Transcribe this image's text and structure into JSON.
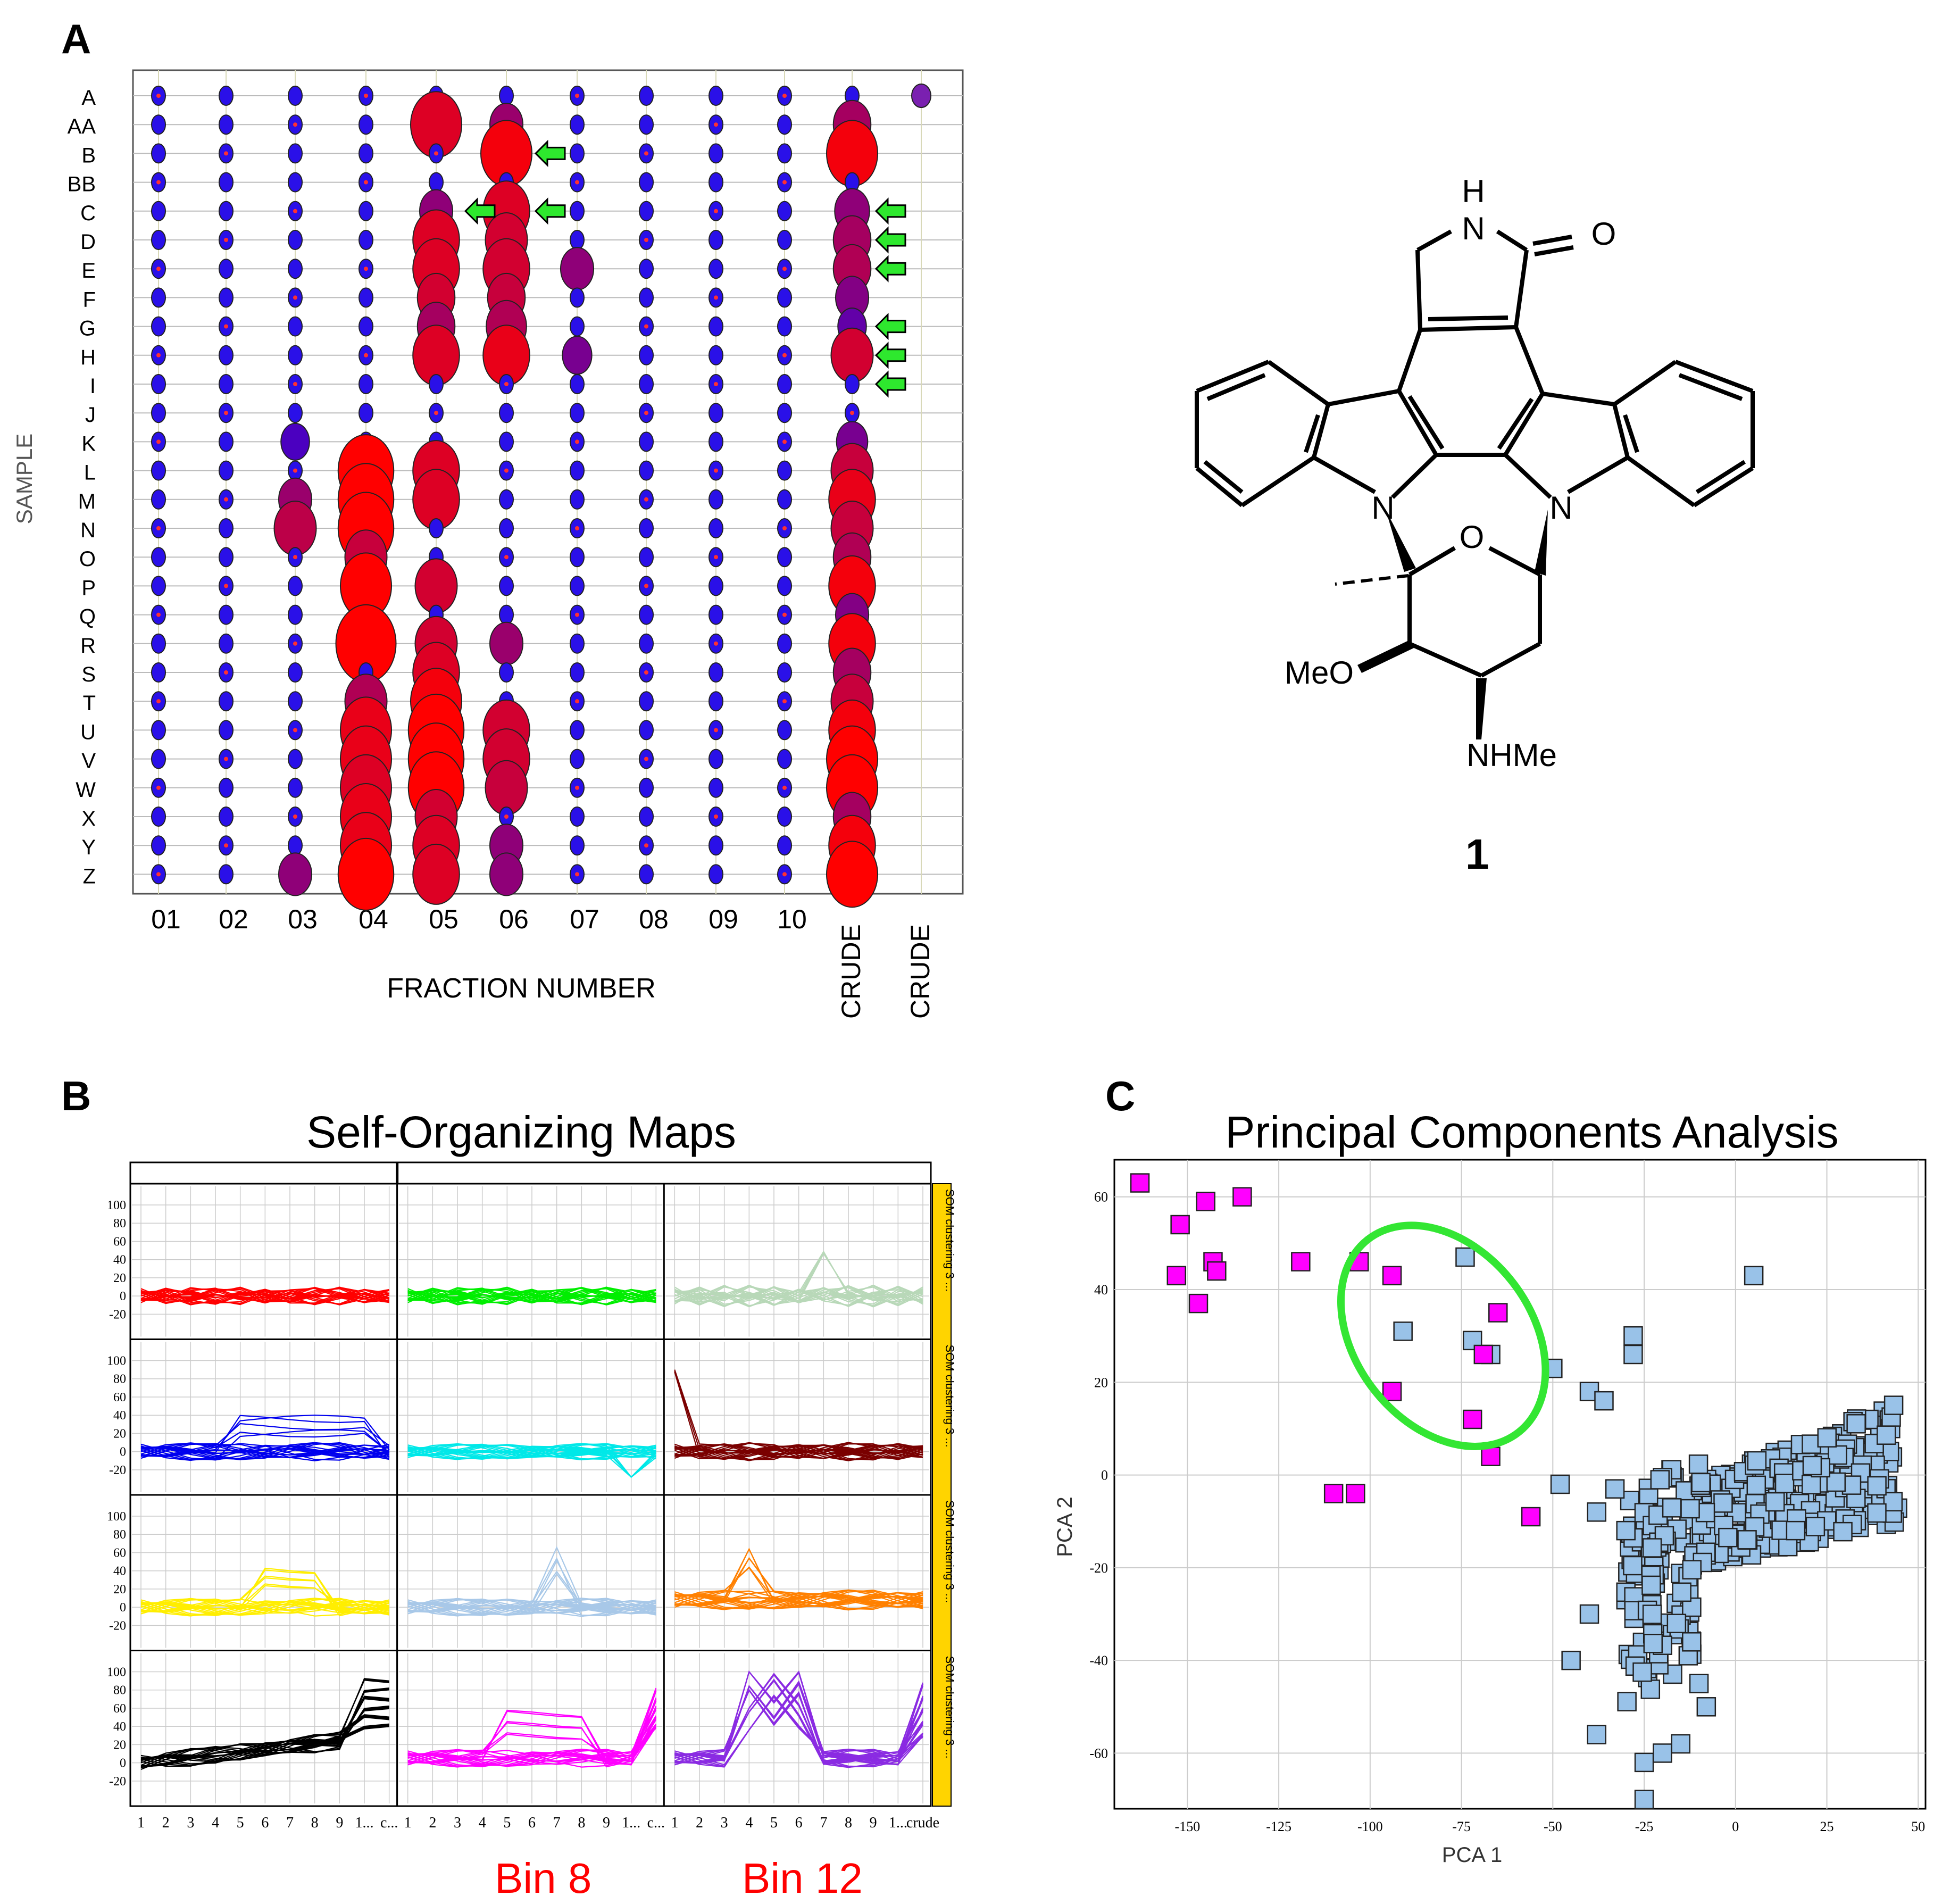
{
  "panels": {
    "a": "A",
    "b": "B",
    "c": "C"
  },
  "chart_data": [
    {
      "type": "bubble-matrix",
      "panel": "A",
      "ylabel": "SAMPLE",
      "xlabel": "FRACTION NUMBER",
      "rows": [
        "A",
        "AA",
        "B",
        "BB",
        "C",
        "D",
        "E",
        "F",
        "G",
        "H",
        "I",
        "J",
        "K",
        "L",
        "M",
        "N",
        "O",
        "P",
        "Q",
        "R",
        "S",
        "T",
        "U",
        "V",
        "W",
        "X",
        "Y",
        "Z"
      ],
      "columns": [
        "01",
        "02",
        "03",
        "04",
        "05",
        "06",
        "07",
        "08",
        "09",
        "10",
        "CRUDE",
        "CRUDE"
      ],
      "size_note": "relative bubble size 1-5, color 0=blue to 1=red",
      "large_cells": [
        {
          "row": "AA",
          "col": "05",
          "size": 4,
          "heat": 0.85
        },
        {
          "row": "AA",
          "col": "06",
          "size": 2,
          "heat": 0.55
        },
        {
          "row": "AA",
          "col": "CRUDE",
          "size": 2.5,
          "heat": 0.6
        },
        {
          "row": "B",
          "col": "06",
          "size": 4,
          "heat": 0.95
        },
        {
          "row": "B",
          "col": "CRUDE",
          "size": 4,
          "heat": 0.95
        },
        {
          "row": "C",
          "col": "05",
          "size": 2,
          "heat": 0.5
        },
        {
          "row": "C",
          "col": "06",
          "size": 3.5,
          "heat": 0.85
        },
        {
          "row": "C",
          "col": "CRUDE",
          "size": 2.2,
          "heat": 0.5
        },
        {
          "row": "D",
          "col": "05",
          "size": 3.5,
          "heat": 0.85
        },
        {
          "row": "D",
          "col": "06",
          "size": 3,
          "heat": 0.8
        },
        {
          "row": "D",
          "col": "CRUDE",
          "size": 2.5,
          "heat": 0.6
        },
        {
          "row": "E",
          "col": "05",
          "size": 3.5,
          "heat": 0.85
        },
        {
          "row": "E",
          "col": "06",
          "size": 3.5,
          "heat": 0.8
        },
        {
          "row": "E",
          "col": "07",
          "size": 2,
          "heat": 0.5
        },
        {
          "row": "E",
          "col": "CRUDE",
          "size": 2.5,
          "heat": 0.65
        },
        {
          "row": "F",
          "col": "05",
          "size": 2.5,
          "heat": 0.8
        },
        {
          "row": "F",
          "col": "06",
          "size": 2.5,
          "heat": 0.75
        },
        {
          "row": "F",
          "col": "CRUDE",
          "size": 2,
          "heat": 0.45
        },
        {
          "row": "G",
          "col": "05",
          "size": 2.5,
          "heat": 0.6
        },
        {
          "row": "G",
          "col": "06",
          "size": 2.8,
          "heat": 0.65
        },
        {
          "row": "G",
          "col": "CRUDE",
          "size": 1.5,
          "heat": 0.3
        },
        {
          "row": "H",
          "col": "05",
          "size": 3.5,
          "heat": 0.85
        },
        {
          "row": "H",
          "col": "06",
          "size": 3.5,
          "heat": 0.9
        },
        {
          "row": "H",
          "col": "07",
          "size": 1.6,
          "heat": 0.4
        },
        {
          "row": "H",
          "col": "CRUDE",
          "size": 3,
          "heat": 0.8
        },
        {
          "row": "K",
          "col": "03",
          "size": 1.5,
          "heat": 0.2
        },
        {
          "row": "K",
          "col": "CRUDE",
          "size": 1.8,
          "heat": 0.4
        },
        {
          "row": "L",
          "col": "04",
          "size": 4.5,
          "heat": 1.0
        },
        {
          "row": "L",
          "col": "05",
          "size": 3.5,
          "heat": 0.85
        },
        {
          "row": "L",
          "col": "CRUDE",
          "size": 3,
          "heat": 0.75
        },
        {
          "row": "M",
          "col": "03",
          "size": 2,
          "heat": 0.55
        },
        {
          "row": "M",
          "col": "04",
          "size": 4.5,
          "heat": 1.0
        },
        {
          "row": "M",
          "col": "05",
          "size": 3.5,
          "heat": 0.85
        },
        {
          "row": "M",
          "col": "CRUDE",
          "size": 3.5,
          "heat": 0.9
        },
        {
          "row": "N",
          "col": "03",
          "size": 3,
          "heat": 0.7
        },
        {
          "row": "N",
          "col": "04",
          "size": 4.5,
          "heat": 1.0
        },
        {
          "row": "N",
          "col": "CRUDE",
          "size": 3,
          "heat": 0.75
        },
        {
          "row": "O",
          "col": "04",
          "size": 3,
          "heat": 0.75
        },
        {
          "row": "O",
          "col": "CRUDE",
          "size": 2.5,
          "heat": 0.65
        },
        {
          "row": "P",
          "col": "04",
          "size": 4,
          "heat": 1.0
        },
        {
          "row": "P",
          "col": "05",
          "size": 3,
          "heat": 0.8
        },
        {
          "row": "P",
          "col": "CRUDE",
          "size": 3.5,
          "heat": 0.95
        },
        {
          "row": "Q",
          "col": "CRUDE",
          "size": 2,
          "heat": 0.45
        },
        {
          "row": "R",
          "col": "04",
          "size": 5,
          "heat": 1.0
        },
        {
          "row": "R",
          "col": "05",
          "size": 3,
          "heat": 0.8
        },
        {
          "row": "R",
          "col": "06",
          "size": 2,
          "heat": 0.55
        },
        {
          "row": "R",
          "col": "CRUDE",
          "size": 3.5,
          "heat": 0.95
        },
        {
          "row": "S",
          "col": "05",
          "size": 3.5,
          "heat": 0.85
        },
        {
          "row": "S",
          "col": "CRUDE",
          "size": 2.5,
          "heat": 0.6
        },
        {
          "row": "T",
          "col": "04",
          "size": 3,
          "heat": 0.65
        },
        {
          "row": "T",
          "col": "05",
          "size": 4,
          "heat": 0.95
        },
        {
          "row": "T",
          "col": "CRUDE",
          "size": 3,
          "heat": 0.75
        },
        {
          "row": "U",
          "col": "04",
          "size": 4,
          "heat": 0.9
        },
        {
          "row": "U",
          "col": "05",
          "size": 4.5,
          "heat": 1.0
        },
        {
          "row": "U",
          "col": "06",
          "size": 3.5,
          "heat": 0.8
        },
        {
          "row": "U",
          "col": "CRUDE",
          "size": 3.5,
          "heat": 0.95
        },
        {
          "row": "V",
          "col": "04",
          "size": 4,
          "heat": 0.9
        },
        {
          "row": "V",
          "col": "05",
          "size": 4.5,
          "heat": 1.0
        },
        {
          "row": "V",
          "col": "06",
          "size": 3.5,
          "heat": 0.8
        },
        {
          "row": "V",
          "col": "CRUDE",
          "size": 4,
          "heat": 1.0
        },
        {
          "row": "W",
          "col": "04",
          "size": 4,
          "heat": 0.85
        },
        {
          "row": "W",
          "col": "05",
          "size": 4.5,
          "heat": 1.0
        },
        {
          "row": "W",
          "col": "06",
          "size": 3,
          "heat": 0.75
        },
        {
          "row": "W",
          "col": "CRUDE",
          "size": 4,
          "heat": 1.0
        },
        {
          "row": "X",
          "col": "04",
          "size": 4,
          "heat": 0.9
        },
        {
          "row": "X",
          "col": "05",
          "size": 3,
          "heat": 0.8
        },
        {
          "row": "X",
          "col": "CRUDE",
          "size": 2.5,
          "heat": 0.6
        },
        {
          "row": "Y",
          "col": "04",
          "size": 4,
          "heat": 0.9
        },
        {
          "row": "Y",
          "col": "05",
          "size": 3.5,
          "heat": 0.85
        },
        {
          "row": "Y",
          "col": "06",
          "size": 2,
          "heat": 0.5
        },
        {
          "row": "Y",
          "col": "CRUDE",
          "size": 3.5,
          "heat": 0.95
        },
        {
          "row": "Z",
          "col": "03",
          "size": 2,
          "heat": 0.5
        },
        {
          "row": "Z",
          "col": "04",
          "size": 4.5,
          "heat": 1.0
        },
        {
          "row": "Z",
          "col": "05",
          "size": 3.5,
          "heat": 0.85
        },
        {
          "row": "Z",
          "col": "06",
          "size": 2,
          "heat": 0.5
        },
        {
          "row": "Z",
          "col": "CRUDE",
          "size": 4,
          "heat": 1.0
        }
      ],
      "arrows": [
        {
          "row": "B",
          "col": "06"
        },
        {
          "row": "C",
          "col": "05"
        },
        {
          "row": "C",
          "col": "06"
        },
        {
          "row": "C",
          "col": "CRUDE"
        },
        {
          "row": "D",
          "col": "CRUDE"
        },
        {
          "row": "E",
          "col": "CRUDE"
        },
        {
          "row": "G",
          "col": "CRUDE"
        },
        {
          "row": "H",
          "col": "CRUDE"
        },
        {
          "row": "I",
          "col": "CRUDE"
        }
      ]
    },
    {
      "type": "line",
      "panel": "B",
      "title": "Self-Organizing Maps",
      "grid_rows": 4,
      "grid_cols": 3,
      "y_ticks": [
        "100",
        "80",
        "60",
        "40",
        "20",
        "0",
        "-20"
      ],
      "x_ticks": [
        "1",
        "2",
        "3",
        "4",
        "5",
        "6",
        "7",
        "8",
        "9",
        "1...",
        "c..."
      ],
      "x_ticks_last": [
        "1",
        "2",
        "3",
        "4",
        "5",
        "6",
        "7",
        "8",
        "9",
        "1...",
        "crude"
      ],
      "strip_label": "SOM clustering 3 ...",
      "cells": [
        {
          "color": "#ff0000",
          "profile": "flat"
        },
        {
          "color": "#00ee00",
          "profile": "flat"
        },
        {
          "color": "#b8d8b8",
          "profile": "flat_peak6"
        },
        {
          "color": "#0000ee",
          "profile": "flat_mid"
        },
        {
          "color": "#00e8e8",
          "profile": "flat_dip"
        },
        {
          "color": "#7a0000",
          "profile": "flat_start"
        },
        {
          "color": "#ffee00",
          "profile": "bump7"
        },
        {
          "color": "#a8c8e8",
          "profile": "peak7"
        },
        {
          "color": "#ff8000",
          "profile": "peak4"
        },
        {
          "color": "#000000",
          "profile": "rise_end"
        },
        {
          "color": "#ff00ff",
          "profile": "peak6_end"
        },
        {
          "color": "#8a2be2",
          "profile": "peak45"
        }
      ],
      "bin_labels": [
        "Bin 8",
        "Bin 12"
      ]
    },
    {
      "type": "scatter",
      "panel": "C",
      "title": "Principal Components Analysis",
      "xlabel": "PCA 1",
      "ylabel": "PCA 2",
      "xlim": [
        -170,
        52
      ],
      "ylim": [
        -72,
        68
      ],
      "x_ticks": [
        -150,
        -125,
        -100,
        -75,
        -50,
        -25,
        0,
        25,
        50
      ],
      "y_ticks": [
        60,
        40,
        20,
        0,
        -20,
        -40,
        -60
      ],
      "series": [
        {
          "name": "magenta",
          "color": "#ff00ff",
          "points": [
            [
              -163,
              63
            ],
            [
              -152,
              54
            ],
            [
              -145,
              59
            ],
            [
              -135,
              60
            ],
            [
              -143,
              46
            ],
            [
              -153,
              43
            ],
            [
              -147,
              37
            ],
            [
              -142,
              44
            ],
            [
              -119,
              46
            ],
            [
              -103,
              46
            ],
            [
              -94,
              43
            ],
            [
              -65,
              35
            ],
            [
              -69,
              26
            ],
            [
              -72,
              12
            ],
            [
              -94,
              18
            ],
            [
              -67,
              4
            ],
            [
              -110,
              -4
            ],
            [
              -104,
              -4
            ],
            [
              -56,
              -9
            ]
          ]
        },
        {
          "name": "lightblue",
          "color": "#99c2e8",
          "points": [
            [
              -91,
              31
            ],
            [
              -74,
              47
            ],
            [
              -72,
              29
            ],
            [
              -67,
              26
            ],
            [
              -50,
              23
            ],
            [
              5,
              43
            ],
            [
              -40,
              18
            ],
            [
              -36,
              16
            ],
            [
              -48,
              -2
            ],
            [
              -28,
              30
            ],
            [
              -28,
              26
            ],
            [
              -33,
              -3
            ],
            [
              -38,
              -8
            ],
            [
              -30,
              -12
            ],
            [
              -45,
              -40
            ],
            [
              -40,
              -30
            ],
            [
              -38,
              -56
            ],
            [
              -25,
              -62
            ],
            [
              -25,
              -70
            ],
            [
              -15,
              -58
            ],
            [
              -20,
              -60
            ],
            [
              -8,
              -50
            ],
            [
              -10,
              -45
            ],
            [
              -12,
              -36
            ]
          ]
        },
        {
          "name": "lightblue-cluster",
          "color": "#99c2e8",
          "dense_cluster": {
            "x_range": [
              -30,
              45
            ],
            "y_range": [
              -50,
              22
            ],
            "count": 380
          }
        }
      ],
      "annotation": "green ellipse around points near (-80, 30)"
    }
  ],
  "molecule": {
    "labels": {
      "nh": "N",
      "h": "H",
      "o_carbonyl": "O",
      "n1": "N",
      "n2": "N",
      "o_ring": "O",
      "meo": "MeO",
      "nhme": "NHMe"
    },
    "compound_number": "1"
  }
}
